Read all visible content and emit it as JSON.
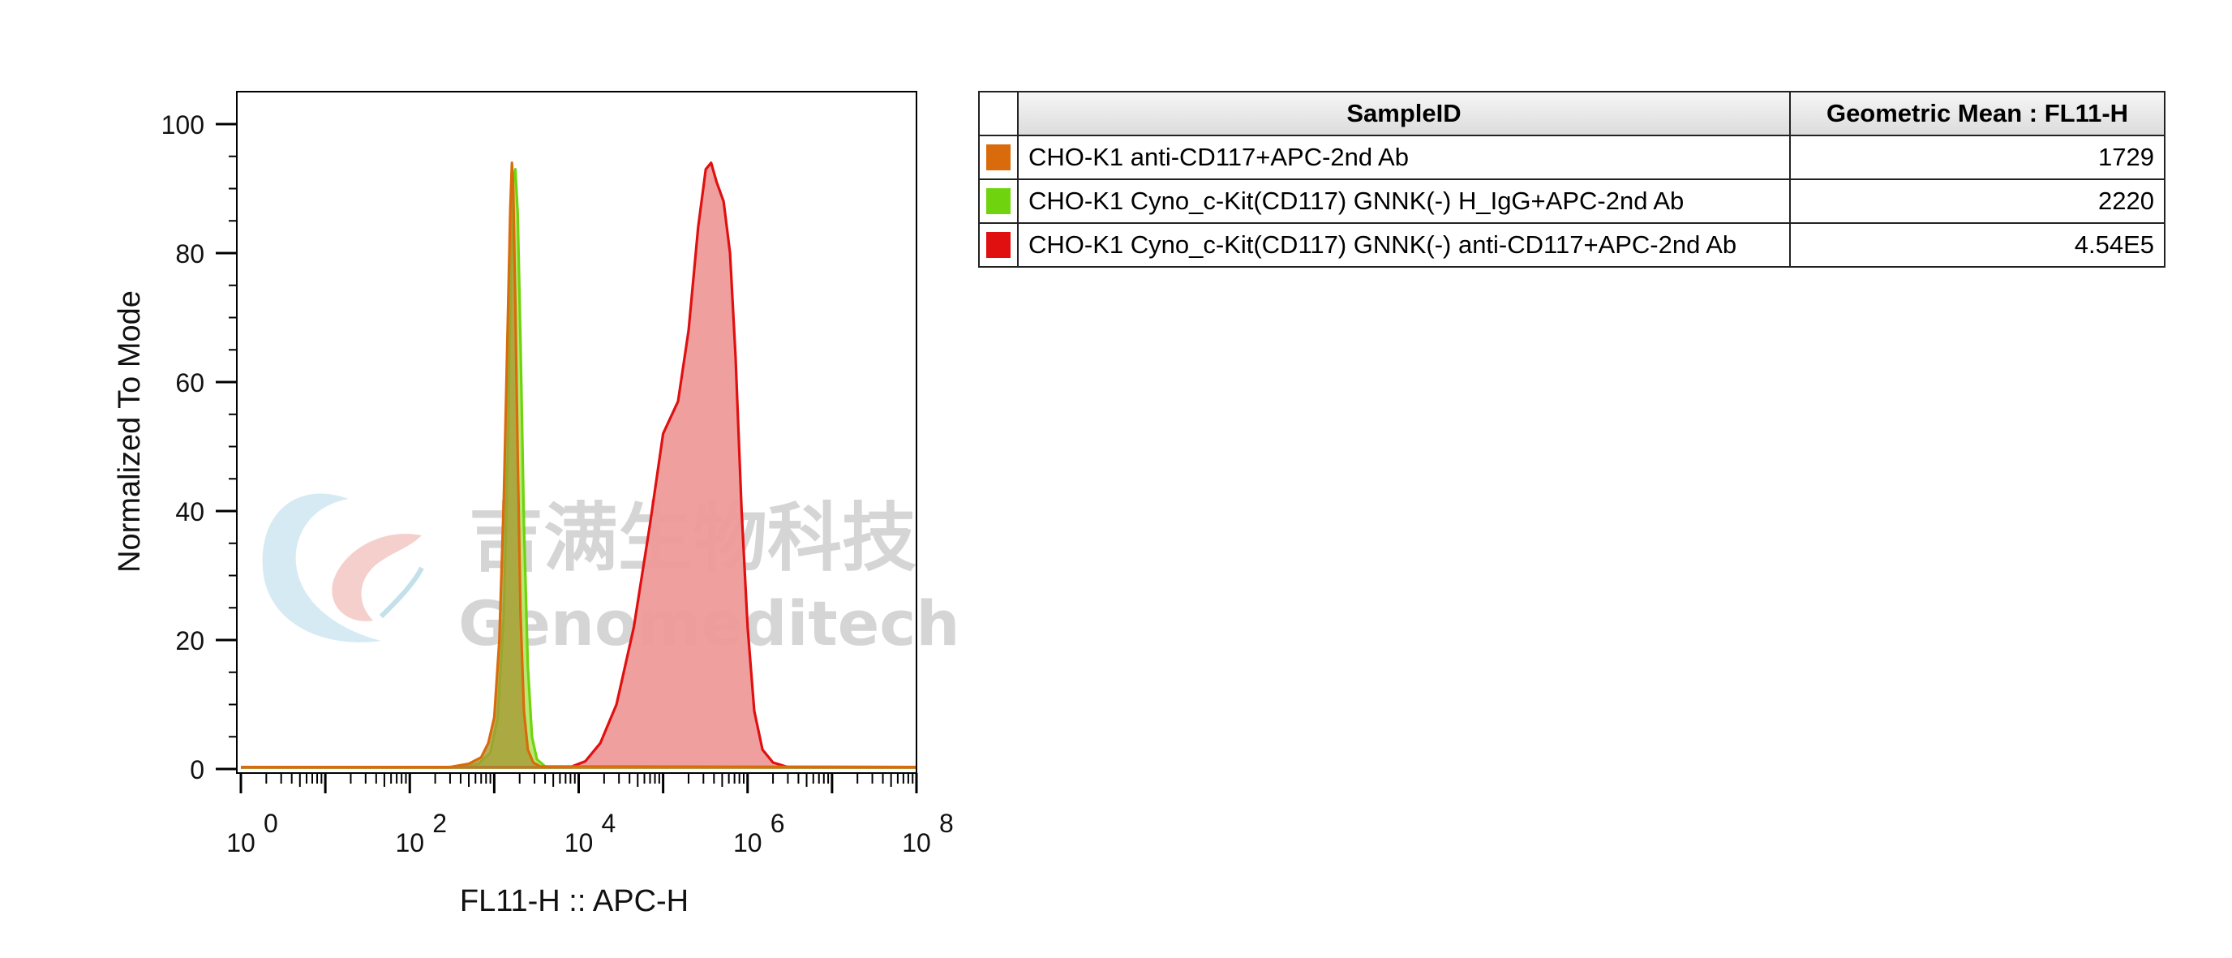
{
  "chart_data": {
    "type": "area",
    "xlabel": "FL11-H :: APC-H",
    "ylabel": "Normalized To Mode",
    "xscale": "log",
    "xlim": [
      1,
      100000000
    ],
    "ylim": [
      0,
      105
    ],
    "x_tick_labels": [
      {
        "base": "10",
        "exp": "0",
        "value": 1
      },
      {
        "base": "10",
        "exp": "2",
        "value": 100
      },
      {
        "base": "10",
        "exp": "4",
        "value": 10000
      },
      {
        "base": "10",
        "exp": "6",
        "value": 1000000
      },
      {
        "base": "10",
        "exp": "8",
        "value": 100000000
      }
    ],
    "y_ticks": [
      0,
      20,
      40,
      60,
      80,
      100
    ],
    "y_tick_labels": [
      "0",
      "20",
      "40",
      "60",
      "80",
      "100"
    ],
    "grid": false,
    "legend_placement": "right table",
    "series": [
      {
        "name": "CHO-K1 anti-CD117+APC-2nd Ab",
        "color": "#d96b0c",
        "fill": "#a89a36",
        "points": [
          [
            1,
            0.3
          ],
          [
            300,
            0.3
          ],
          [
            500,
            0.8
          ],
          [
            700,
            1.8
          ],
          [
            850,
            4
          ],
          [
            1000,
            8
          ],
          [
            1150,
            20
          ],
          [
            1300,
            42
          ],
          [
            1450,
            70
          ],
          [
            1550,
            87
          ],
          [
            1620,
            94
          ],
          [
            1680,
            90
          ],
          [
            1780,
            72
          ],
          [
            1900,
            48
          ],
          [
            2050,
            24
          ],
          [
            2250,
            9
          ],
          [
            2500,
            3
          ],
          [
            2900,
            1
          ],
          [
            3500,
            0.4
          ],
          [
            100000000,
            0.3
          ]
        ]
      },
      {
        "name": "CHO-K1 Cyno_c-Kit(CD117) GNNK(-) H_IgG+APC-2nd Ab",
        "color": "#6fd40e",
        "fill": "#b5e86a",
        "points": [
          [
            1,
            0.3
          ],
          [
            400,
            0.3
          ],
          [
            650,
            0.8
          ],
          [
            900,
            2.5
          ],
          [
            1100,
            8
          ],
          [
            1300,
            24
          ],
          [
            1450,
            50
          ],
          [
            1580,
            78
          ],
          [
            1680,
            91
          ],
          [
            1780,
            93
          ],
          [
            1900,
            86
          ],
          [
            2050,
            66
          ],
          [
            2250,
            38
          ],
          [
            2500,
            16
          ],
          [
            2800,
            5
          ],
          [
            3200,
            1.5
          ],
          [
            4000,
            0.4
          ],
          [
            100000000,
            0.3
          ]
        ]
      },
      {
        "name": "CHO-K1 Cyno_c-Kit(CD117) GNNK(-) anti-CD117+APC-2nd Ab",
        "color": "#e01010",
        "fill": "#ef9a9a",
        "points": [
          [
            1,
            0.3
          ],
          [
            8000,
            0.3
          ],
          [
            12000,
            1.2
          ],
          [
            18000,
            4
          ],
          [
            28000,
            10
          ],
          [
            45000,
            22
          ],
          [
            70000,
            38
          ],
          [
            100000,
            52
          ],
          [
            150000,
            57
          ],
          [
            200000,
            68
          ],
          [
            260000,
            84
          ],
          [
            320000,
            93
          ],
          [
            370000,
            94
          ],
          [
            430000,
            91
          ],
          [
            520000,
            88
          ],
          [
            620000,
            80
          ],
          [
            720000,
            64
          ],
          [
            850000,
            40
          ],
          [
            1000000,
            22
          ],
          [
            1200000,
            9
          ],
          [
            1500000,
            3
          ],
          [
            2000000,
            1
          ],
          [
            3000000,
            0.3
          ],
          [
            100000000,
            0.3
          ]
        ]
      }
    ]
  },
  "watermark": {
    "cn_text": "吉满生物科技",
    "en_text": "Genomeditech"
  },
  "table": {
    "headers": {
      "sample": "SampleID",
      "value": "Geometric Mean : FL11-H"
    },
    "rows": [
      {
        "color": "#d96b0c",
        "sample": "CHO-K1 anti-CD117+APC-2nd Ab",
        "value": "1729"
      },
      {
        "color": "#6fd40e",
        "sample": "CHO-K1 Cyno_c-Kit(CD117) GNNK(-) H_IgG+APC-2nd Ab",
        "value": "2220"
      },
      {
        "color": "#e01010",
        "sample": "CHO-K1 Cyno_c-Kit(CD117) GNNK(-) anti-CD117+APC-2nd Ab",
        "value": "4.54E5"
      }
    ]
  }
}
